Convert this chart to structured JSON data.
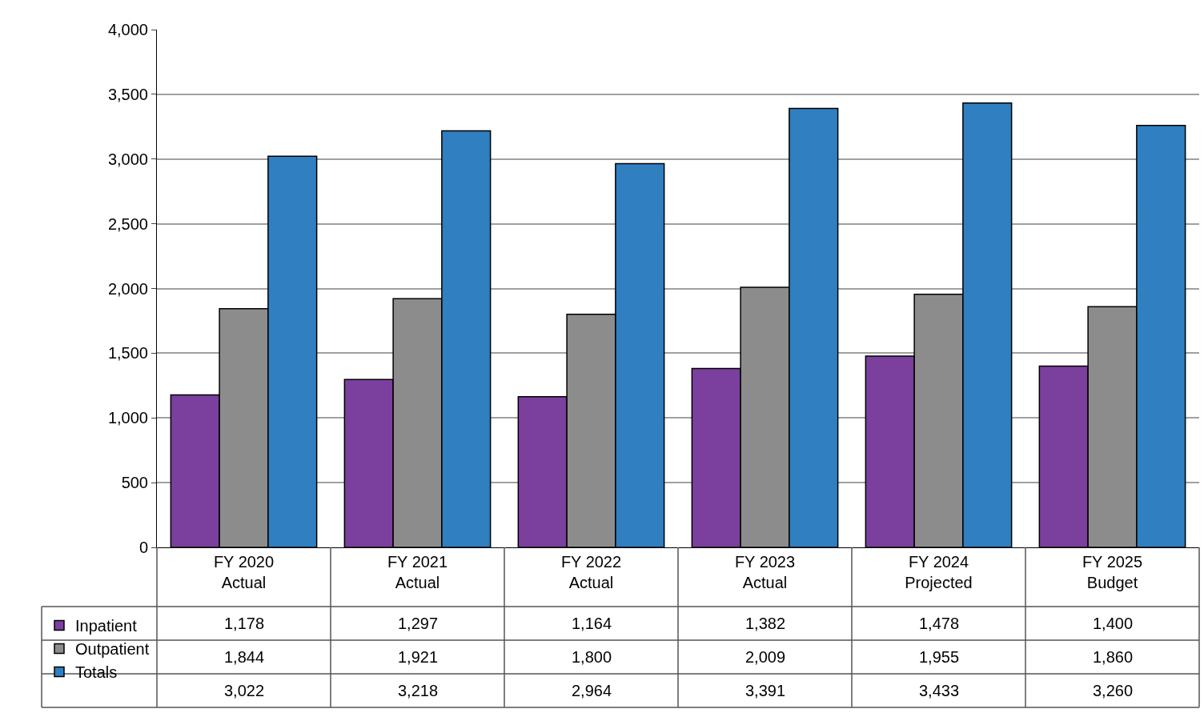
{
  "chart_data": {
    "type": "bar",
    "categories": [
      "FY 2020\nActual",
      "FY 2021\nActual",
      "FY 2022\nActual",
      "FY 2023\nActual",
      "FY 2024\nProjected",
      "FY 2025\nBudget"
    ],
    "series": [
      {
        "name": "Inpatient",
        "color": "#7b3f9e",
        "values": [
          1178,
          1297,
          1164,
          1382,
          1478,
          1400
        ],
        "value_labels": [
          "1,178",
          "1,297",
          "1,164",
          "1,382",
          "1,478",
          "1,400"
        ]
      },
      {
        "name": "Outpatient",
        "color": "#8c8c8c",
        "values": [
          1844,
          1921,
          1800,
          2009,
          1955,
          1860
        ],
        "value_labels": [
          "1,844",
          "1,921",
          "1,800",
          "2,009",
          "1,955",
          "1,860"
        ]
      },
      {
        "name": "Totals",
        "color": "#2f7fc1",
        "values": [
          3022,
          3218,
          2964,
          3391,
          3433,
          3260
        ],
        "value_labels": [
          "3,022",
          "3,218",
          "2,964",
          "3,391",
          "3,433",
          "3,260"
        ]
      }
    ],
    "ylim": [
      0,
      4000
    ],
    "yticks": [
      {
        "value": 0,
        "label": "0"
      },
      {
        "value": 500,
        "label": "500"
      },
      {
        "value": 1000,
        "label": "1,000"
      },
      {
        "value": 1500,
        "label": "1,500"
      },
      {
        "value": 2000,
        "label": "2,000"
      },
      {
        "value": 2500,
        "label": "2,500"
      },
      {
        "value": 3000,
        "label": "3,000"
      },
      {
        "value": 3500,
        "label": "3,500"
      },
      {
        "value": 4000,
        "label": "4,000"
      }
    ],
    "grid": "y",
    "legend": "bottom left"
  }
}
